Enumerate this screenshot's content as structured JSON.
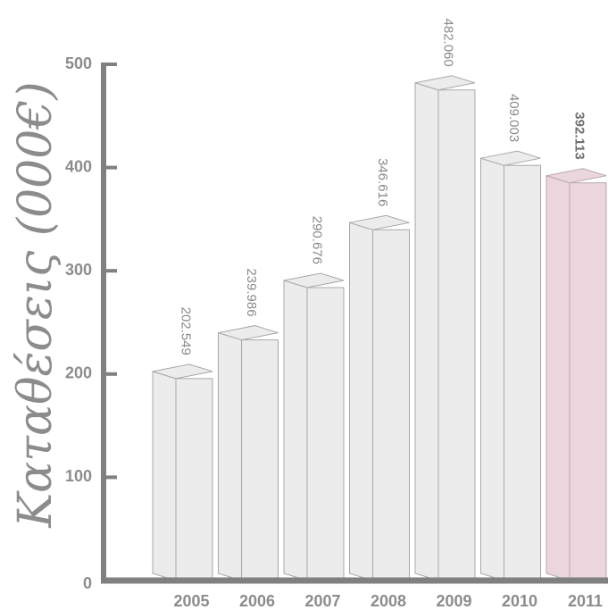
{
  "chart_data": {
    "type": "bar",
    "ylabel": "Καταθέσεις (000€)",
    "categories": [
      "2005",
      "2006",
      "2007",
      "2008",
      "2009",
      "2010",
      "2011"
    ],
    "values": [
      202.549,
      239.986,
      290.676,
      346.616,
      482.06,
      409.003,
      392.113
    ],
    "value_labels": [
      "202.549",
      "239.986",
      "290.676",
      "346.616",
      "482.060",
      "409.003",
      "392.113"
    ],
    "highlight_index": 6,
    "ylim": [
      0,
      500
    ],
    "yticks": [
      "0",
      "100",
      "200",
      "300",
      "400",
      "500"
    ],
    "grid": false,
    "colors": {
      "bar": "#ececec",
      "bar_edge": "#a8a8a8",
      "highlight_bar": "#ecd6de",
      "highlight_edge": "#b8a8ae",
      "axis": "#808080"
    }
  }
}
